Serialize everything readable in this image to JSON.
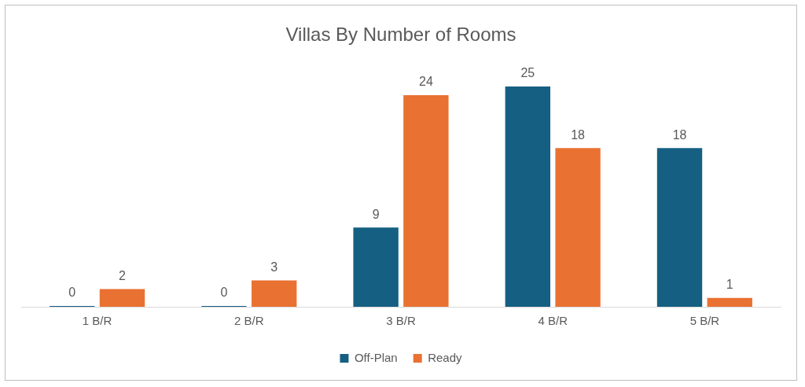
{
  "chart_data": {
    "type": "bar",
    "title": "Villas By Number of Rooms",
    "categories": [
      "1 B/R",
      "2 B/R",
      "3 B/R",
      "4 B/R",
      "5 B/R"
    ],
    "series": [
      {
        "name": "Off-Plan",
        "color": "#156082",
        "values": [
          0,
          0,
          9,
          25,
          18
        ]
      },
      {
        "name": "Ready",
        "color": "#e97132",
        "values": [
          2,
          3,
          24,
          18,
          1
        ]
      }
    ],
    "data_labels": true,
    "grid": false,
    "legend": "bottom"
  }
}
